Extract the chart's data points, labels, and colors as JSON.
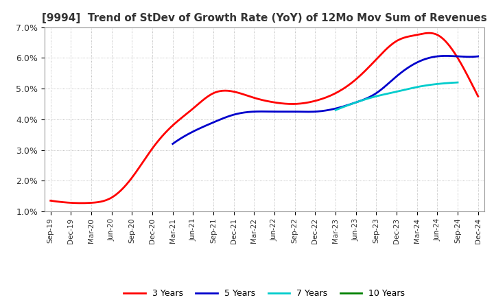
{
  "title": "[9994]  Trend of StDev of Growth Rate (YoY) of 12Mo Mov Sum of Revenues",
  "ylim": [
    0.01,
    0.07
  ],
  "yticks": [
    0.01,
    0.02,
    0.03,
    0.04,
    0.05,
    0.06,
    0.07
  ],
  "ytick_labels": [
    "1.0%",
    "2.0%",
    "3.0%",
    "4.0%",
    "5.0%",
    "6.0%",
    "7.0%"
  ],
  "background_color": "#ffffff",
  "grid_color": "#aaaaaa",
  "title_fontsize": 11,
  "x_labels": [
    "Sep-19",
    "Dec-19",
    "Mar-20",
    "Jun-20",
    "Sep-20",
    "Dec-20",
    "Mar-21",
    "Jun-21",
    "Sep-21",
    "Dec-21",
    "Mar-22",
    "Jun-22",
    "Sep-22",
    "Dec-22",
    "Mar-23",
    "Jun-23",
    "Sep-23",
    "Dec-23",
    "Mar-24",
    "Jun-24",
    "Sep-24",
    "Dec-24"
  ],
  "series": {
    "3 Years": {
      "color": "#ff0000",
      "data": [
        1.35,
        1.28,
        1.28,
        1.45,
        2.1,
        3.05,
        3.8,
        4.35,
        4.85,
        4.9,
        4.7,
        4.55,
        4.5,
        4.6,
        4.85,
        5.3,
        5.95,
        6.55,
        6.75,
        6.75,
        6.0,
        4.75
      ]
    },
    "5 Years": {
      "color": "#0000cc",
      "data": [
        null,
        null,
        null,
        null,
        null,
        null,
        3.2,
        3.6,
        3.9,
        4.15,
        4.25,
        4.25,
        4.25,
        4.25,
        4.35,
        4.55,
        4.85,
        5.4,
        5.85,
        6.05,
        6.05,
        6.05
      ]
    },
    "7 Years": {
      "color": "#00cccc",
      "data": [
        null,
        null,
        null,
        null,
        null,
        null,
        null,
        null,
        null,
        null,
        null,
        null,
        null,
        null,
        4.3,
        4.55,
        4.75,
        4.9,
        5.05,
        5.15,
        5.2,
        null
      ]
    },
    "10 Years": {
      "color": "#008000",
      "data": [
        null,
        null,
        null,
        null,
        null,
        null,
        null,
        null,
        null,
        null,
        null,
        null,
        null,
        null,
        null,
        null,
        null,
        null,
        null,
        null,
        null,
        null
      ]
    }
  }
}
